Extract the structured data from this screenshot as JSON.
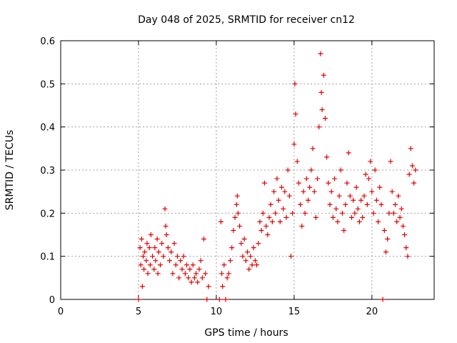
{
  "chart_data": {
    "type": "scatter",
    "title": "Day 048 of 2025, SRMTID for receiver cn12",
    "xlabel": "GPS time / hours",
    "ylabel": "SRMTID / TECUs",
    "xlim": [
      0,
      24
    ],
    "ylim": [
      0,
      0.6
    ],
    "xticks": [
      0,
      5,
      10,
      15,
      20
    ],
    "yticks": [
      0,
      0.1,
      0.2,
      0.3,
      0.4,
      0.5,
      0.6
    ],
    "xtick_labels": [
      "0",
      "5",
      "10",
      "15",
      "20"
    ],
    "ytick_labels": [
      "0",
      "0.1",
      "0.2",
      "0.3",
      "0.4",
      "0.5",
      "0.6"
    ],
    "grid": true,
    "marker": "+",
    "marker_color": "#e00000",
    "series": [
      {
        "name": "SRMTID",
        "points": [
          [
            5.0,
            0.0
          ],
          [
            5.1,
            0.12
          ],
          [
            5.15,
            0.08
          ],
          [
            5.2,
            0.14
          ],
          [
            5.25,
            0.03
          ],
          [
            5.3,
            0.1
          ],
          [
            5.35,
            0.07
          ],
          [
            5.4,
            0.11
          ],
          [
            5.5,
            0.09
          ],
          [
            5.55,
            0.13
          ],
          [
            5.6,
            0.06
          ],
          [
            5.7,
            0.12
          ],
          [
            5.75,
            0.08
          ],
          [
            5.8,
            0.15
          ],
          [
            5.9,
            0.1
          ],
          [
            6.0,
            0.07
          ],
          [
            6.05,
            0.12
          ],
          [
            6.1,
            0.09
          ],
          [
            6.2,
            0.14
          ],
          [
            6.25,
            0.06
          ],
          [
            6.3,
            0.11
          ],
          [
            6.4,
            0.08
          ],
          [
            6.5,
            0.13
          ],
          [
            6.6,
            0.1
          ],
          [
            6.7,
            0.21
          ],
          [
            6.75,
            0.17
          ],
          [
            6.8,
            0.15
          ],
          [
            6.9,
            0.12
          ],
          [
            7.0,
            0.09
          ],
          [
            7.1,
            0.11
          ],
          [
            7.2,
            0.06
          ],
          [
            7.3,
            0.13
          ],
          [
            7.4,
            0.08
          ],
          [
            7.5,
            0.1
          ],
          [
            7.6,
            0.05
          ],
          [
            7.7,
            0.09
          ],
          [
            7.8,
            0.07
          ],
          [
            7.9,
            0.1
          ],
          [
            8.0,
            0.06
          ],
          [
            8.1,
            0.08
          ],
          [
            8.2,
            0.05
          ],
          [
            8.3,
            0.07
          ],
          [
            8.4,
            0.04
          ],
          [
            8.5,
            0.08
          ],
          [
            8.6,
            0.05
          ],
          [
            8.7,
            0.06
          ],
          [
            8.8,
            0.04
          ],
          [
            8.9,
            0.07
          ],
          [
            9.0,
            0.09
          ],
          [
            9.1,
            0.05
          ],
          [
            9.2,
            0.14
          ],
          [
            9.3,
            0.06
          ],
          [
            9.4,
            0.0
          ],
          [
            9.5,
            0.03
          ],
          [
            10.2,
            0.0
          ],
          [
            10.3,
            0.18
          ],
          [
            10.35,
            0.06
          ],
          [
            10.4,
            0.03
          ],
          [
            10.5,
            0.08
          ],
          [
            10.6,
            0.0
          ],
          [
            10.7,
            0.05
          ],
          [
            10.8,
            0.06
          ],
          [
            10.9,
            0.09
          ],
          [
            11.0,
            0.12
          ],
          [
            11.1,
            0.16
          ],
          [
            11.2,
            0.19
          ],
          [
            11.3,
            0.22
          ],
          [
            11.35,
            0.24
          ],
          [
            11.4,
            0.2
          ],
          [
            11.5,
            0.17
          ],
          [
            11.6,
            0.13
          ],
          [
            11.7,
            0.1
          ],
          [
            11.8,
            0.14
          ],
          [
            11.9,
            0.09
          ],
          [
            12.0,
            0.11
          ],
          [
            12.1,
            0.07
          ],
          [
            12.2,
            0.1
          ],
          [
            12.3,
            0.08
          ],
          [
            12.4,
            0.12
          ],
          [
            12.5,
            0.09
          ],
          [
            12.6,
            0.08
          ],
          [
            12.7,
            0.13
          ],
          [
            12.8,
            0.18
          ],
          [
            12.9,
            0.16
          ],
          [
            13.0,
            0.2
          ],
          [
            13.1,
            0.27
          ],
          [
            13.2,
            0.17
          ],
          [
            13.3,
            0.15
          ],
          [
            13.4,
            0.19
          ],
          [
            13.5,
            0.22
          ],
          [
            13.6,
            0.18
          ],
          [
            13.7,
            0.25
          ],
          [
            13.8,
            0.2
          ],
          [
            13.9,
            0.28
          ],
          [
            14.0,
            0.23
          ],
          [
            14.1,
            0.18
          ],
          [
            14.2,
            0.26
          ],
          [
            14.3,
            0.21
          ],
          [
            14.4,
            0.25
          ],
          [
            14.5,
            0.19
          ],
          [
            14.6,
            0.3
          ],
          [
            14.7,
            0.24
          ],
          [
            14.8,
            0.1
          ],
          [
            14.9,
            0.2
          ],
          [
            15.0,
            0.36
          ],
          [
            15.05,
            0.5
          ],
          [
            15.1,
            0.43
          ],
          [
            15.2,
            0.32
          ],
          [
            15.3,
            0.27
          ],
          [
            15.4,
            0.22
          ],
          [
            15.5,
            0.17
          ],
          [
            15.6,
            0.25
          ],
          [
            15.7,
            0.2
          ],
          [
            15.8,
            0.28
          ],
          [
            15.9,
            0.23
          ],
          [
            16.0,
            0.26
          ],
          [
            16.1,
            0.3
          ],
          [
            16.2,
            0.35
          ],
          [
            16.3,
            0.25
          ],
          [
            16.4,
            0.19
          ],
          [
            16.5,
            0.28
          ],
          [
            16.6,
            0.4
          ],
          [
            16.7,
            0.57
          ],
          [
            16.75,
            0.48
          ],
          [
            16.8,
            0.44
          ],
          [
            16.9,
            0.52
          ],
          [
            17.0,
            0.42
          ],
          [
            17.1,
            0.33
          ],
          [
            17.2,
            0.27
          ],
          [
            17.3,
            0.22
          ],
          [
            17.4,
            0.25
          ],
          [
            17.5,
            0.19
          ],
          [
            17.6,
            0.28
          ],
          [
            17.7,
            0.21
          ],
          [
            17.8,
            0.18
          ],
          [
            17.9,
            0.24
          ],
          [
            18.0,
            0.3
          ],
          [
            18.1,
            0.2
          ],
          [
            18.2,
            0.16
          ],
          [
            18.3,
            0.22
          ],
          [
            18.4,
            0.27
          ],
          [
            18.5,
            0.34
          ],
          [
            18.6,
            0.24
          ],
          [
            18.7,
            0.19
          ],
          [
            18.8,
            0.23
          ],
          [
            18.9,
            0.2
          ],
          [
            19.0,
            0.26
          ],
          [
            19.1,
            0.21
          ],
          [
            19.2,
            0.18
          ],
          [
            19.3,
            0.23
          ],
          [
            19.4,
            0.19
          ],
          [
            19.5,
            0.24
          ],
          [
            19.6,
            0.29
          ],
          [
            19.7,
            0.22
          ],
          [
            19.8,
            0.28
          ],
          [
            19.9,
            0.32
          ],
          [
            20.0,
            0.25
          ],
          [
            20.1,
            0.2
          ],
          [
            20.2,
            0.3
          ],
          [
            20.3,
            0.23
          ],
          [
            20.4,
            0.18
          ],
          [
            20.5,
            0.26
          ],
          [
            20.6,
            0.22
          ],
          [
            20.7,
            0.0
          ],
          [
            20.8,
            0.16
          ],
          [
            20.9,
            0.11
          ],
          [
            21.0,
            0.14
          ],
          [
            21.1,
            0.2
          ],
          [
            21.2,
            0.32
          ],
          [
            21.3,
            0.25
          ],
          [
            21.4,
            0.2
          ],
          [
            21.5,
            0.22
          ],
          [
            21.6,
            0.18
          ],
          [
            21.7,
            0.24
          ],
          [
            21.8,
            0.19
          ],
          [
            21.9,
            0.21
          ],
          [
            22.0,
            0.17
          ],
          [
            22.1,
            0.15
          ],
          [
            22.2,
            0.12
          ],
          [
            22.3,
            0.1
          ],
          [
            22.4,
            0.29
          ],
          [
            22.5,
            0.35
          ],
          [
            22.6,
            0.31
          ],
          [
            22.7,
            0.27
          ],
          [
            22.8,
            0.3
          ]
        ]
      }
    ]
  }
}
